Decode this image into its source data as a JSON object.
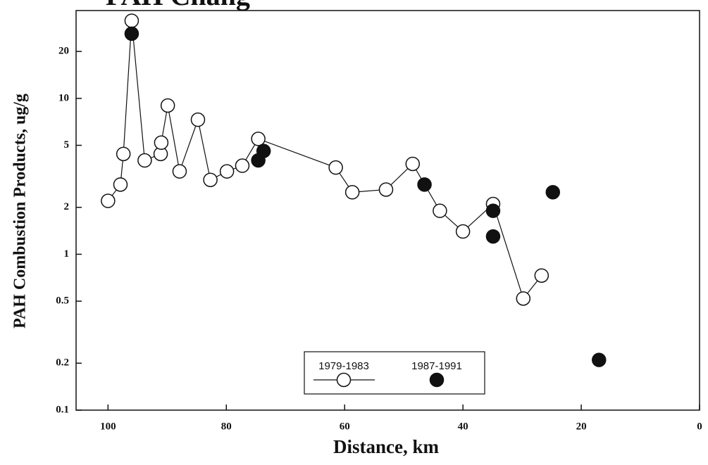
{
  "chart_data": {
    "type": "scatter",
    "title": "PAH Chang",
    "x_label": "Distance, km",
    "y_label": "PAH Combustion Products, ug/g",
    "xlim": [
      105.4,
      0
    ],
    "ylim": [
      0.1,
      36.6
    ],
    "log_y": true,
    "xticks": [
      100,
      80,
      60,
      40,
      20,
      0
    ],
    "yticks": [
      0.1,
      0.2,
      0.5,
      1,
      2,
      5,
      10,
      20
    ],
    "legend_position": "bottom",
    "series": [
      {
        "name": "1979-1983",
        "color": "#111111",
        "marker": "open",
        "connect": true,
        "x": [
          100,
          97.9,
          97.4,
          96,
          93.8,
          91.1,
          91,
          89.9,
          87.9,
          84.8,
          82.7,
          79.9,
          77.3,
          74.6,
          61.5,
          58.7,
          53,
          48.5,
          43.9,
          40,
          34.9,
          29.8,
          26.7
        ],
        "values": [
          2.2,
          2.8,
          4.4,
          31.5,
          4.0,
          4.4,
          5.2,
          9,
          3.4,
          7.3,
          3.0,
          3.4,
          3.7,
          5.5,
          3.6,
          2.5,
          2.6,
          3.8,
          1.9,
          1.4,
          2.1,
          0.52,
          0.73
        ]
      },
      {
        "name": "1987-1991",
        "color": "#111111",
        "marker": "filled",
        "connect": false,
        "x": [
          96,
          74.6,
          73.7,
          46.5,
          34.9,
          34.9,
          24.8,
          17
        ],
        "values": [
          26,
          4.0,
          4.6,
          2.8,
          1.9,
          1.3,
          2.5,
          0.21
        ]
      }
    ]
  }
}
